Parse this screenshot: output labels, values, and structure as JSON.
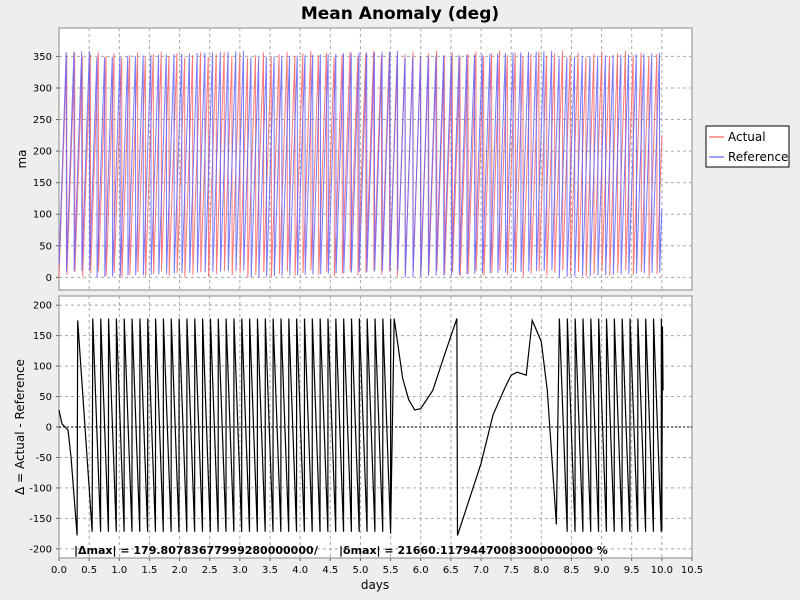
{
  "chart_data": [
    {
      "type": "line",
      "title": "Mean Anomaly (deg)",
      "xlabel": "",
      "ylabel": "ma",
      "xlim": [
        0,
        10.5
      ],
      "ylim": [
        -20,
        395
      ],
      "y_ticks": [
        0,
        50,
        100,
        150,
        200,
        250,
        300,
        350
      ],
      "grid": true,
      "legend": "right",
      "x_end": 10.0,
      "series": [
        {
          "name": "Actual",
          "color": "#ff6060",
          "cycle_days": 0.1305,
          "phase_deg": 0,
          "min": 0,
          "max": 359
        },
        {
          "name": "Reference",
          "color": "#6060ff",
          "cycle_days": 0.1278,
          "phase_deg": 20,
          "min": 0,
          "max": 359
        }
      ]
    },
    {
      "type": "line",
      "title": "",
      "xlabel": "days",
      "ylabel": "Δ = Actual - Reference",
      "xlim": [
        0,
        10.5
      ],
      "ylim": [
        -215,
        215
      ],
      "y_ticks": [
        -200,
        -150,
        -100,
        -50,
        0,
        50,
        100,
        150,
        200
      ],
      "x_ticks": [
        0.0,
        0.5,
        1.0,
        1.5,
        2.0,
        2.5,
        3.0,
        3.5,
        4.0,
        4.5,
        5.0,
        5.5,
        6.0,
        6.5,
        7.0,
        7.5,
        8.0,
        8.5,
        9.0,
        9.5,
        10.0,
        10.5
      ],
      "x_tick_labels": [
        "0.0",
        "0.5",
        "1.0",
        "1.5",
        "2.0",
        "2.5",
        "3.0",
        "3.5",
        "4.0",
        "4.5",
        "5.0",
        "5.5",
        "6.0",
        "6.5",
        "7.0",
        "7.5",
        "8.0",
        "8.5",
        "9.0",
        "9.5",
        "10.0",
        "10.5"
      ],
      "grid": true,
      "zero_line": true,
      "series": [
        {
          "name": "Δ",
          "color": "#000000",
          "points": [
            [
              0.0,
              28
            ],
            [
              0.05,
              5
            ],
            [
              0.15,
              -5
            ],
            [
              0.2,
              -50
            ],
            [
              0.3,
              -178
            ],
            [
              0.31,
              175
            ],
            [
              0.55,
              -172
            ],
            [
              0.56,
              178
            ],
            [
              5.5,
              -175
            ],
            [
              5.56,
              178
            ],
            [
              5.7,
              80
            ],
            [
              5.8,
              45
            ],
            [
              5.9,
              28
            ],
            [
              6.0,
              30
            ],
            [
              6.2,
              60
            ],
            [
              6.4,
              120
            ],
            [
              6.6,
              178
            ],
            [
              6.61,
              -178
            ],
            [
              7.0,
              -60
            ],
            [
              7.2,
              20
            ],
            [
              7.4,
              65
            ],
            [
              7.5,
              85
            ],
            [
              7.6,
              90
            ],
            [
              7.75,
              85
            ],
            [
              7.85,
              175
            ],
            [
              8.0,
              140
            ],
            [
              8.1,
              60
            ],
            [
              8.25,
              -160
            ],
            [
              8.3,
              178
            ],
            [
              10.0,
              -170
            ],
            [
              10.01,
              165
            ],
            [
              10.02,
              60
            ]
          ],
          "oscillation": {
            "ranges": [
              [
                0.56,
                5.5
              ],
              [
                8.3,
                10.0
              ]
            ],
            "cycle_days": 0.13,
            "min": -172,
            "max": 178
          }
        }
      ],
      "annotation": {
        "delta_max": "|Δmax| = 179.80783677999280000000",
        "separator": "/",
        "delta_rel_max": "|δmax| = 21660.11794470083000000000 %"
      }
    }
  ]
}
